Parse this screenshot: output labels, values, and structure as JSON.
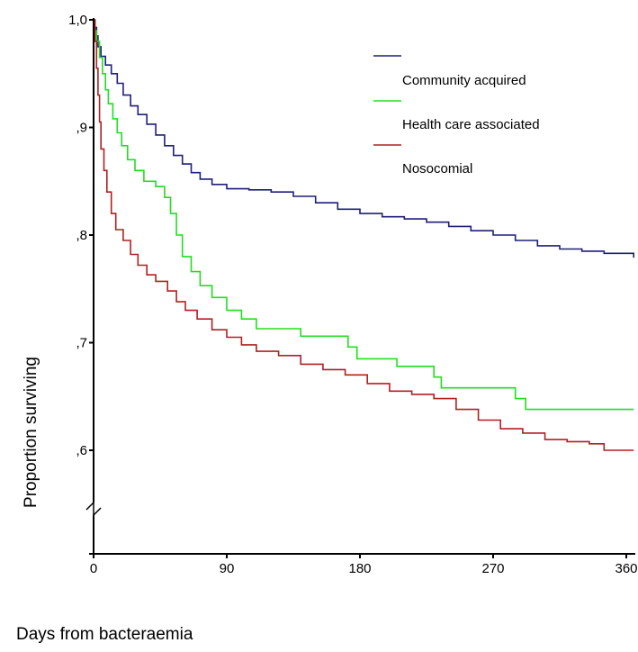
{
  "chart_data": {
    "type": "line",
    "title": "",
    "xlabel": "Days from bacteraemia",
    "ylabel": "Proportion surviving",
    "xlim": [
      0,
      365
    ],
    "ylim": [
      0.5,
      1.0
    ],
    "x_ticks": [
      0,
      90,
      180,
      270,
      360
    ],
    "x_tick_labels": [
      "0",
      "90",
      "180",
      "270",
      "360"
    ],
    "y_ticks": [
      1.0,
      0.9,
      0.8,
      0.7,
      0.6
    ],
    "y_tick_labels": [
      "1,0",
      ",9",
      ",8",
      ",7",
      ",6"
    ],
    "y_axis_break": true,
    "grid": false,
    "legend_position": "top-right",
    "series": [
      {
        "name": "Community acquired",
        "color": "#1f1f7a",
        "step": true,
        "points": [
          [
            0,
            1.0
          ],
          [
            1,
            0.993
          ],
          [
            2,
            0.985
          ],
          [
            3,
            0.975
          ],
          [
            5,
            0.966
          ],
          [
            8,
            0.958
          ],
          [
            12,
            0.95
          ],
          [
            16,
            0.941
          ],
          [
            20,
            0.93
          ],
          [
            25,
            0.92
          ],
          [
            30,
            0.912
          ],
          [
            36,
            0.903
          ],
          [
            42,
            0.893
          ],
          [
            48,
            0.883
          ],
          [
            54,
            0.874
          ],
          [
            60,
            0.866
          ],
          [
            66,
            0.858
          ],
          [
            72,
            0.852
          ],
          [
            80,
            0.847
          ],
          [
            90,
            0.843
          ],
          [
            105,
            0.842
          ],
          [
            120,
            0.84
          ],
          [
            135,
            0.836
          ],
          [
            150,
            0.83
          ],
          [
            165,
            0.824
          ],
          [
            180,
            0.82
          ],
          [
            195,
            0.817
          ],
          [
            210,
            0.815
          ],
          [
            225,
            0.812
          ],
          [
            240,
            0.808
          ],
          [
            255,
            0.804
          ],
          [
            270,
            0.8
          ],
          [
            285,
            0.795
          ],
          [
            300,
            0.79
          ],
          [
            315,
            0.787
          ],
          [
            330,
            0.785
          ],
          [
            345,
            0.783
          ],
          [
            360,
            0.783
          ],
          [
            365,
            0.779
          ]
        ]
      },
      {
        "name": "Health care associated",
        "color": "#22dd22",
        "step": true,
        "points": [
          [
            0,
            1.0
          ],
          [
            1,
            0.99
          ],
          [
            2,
            0.98
          ],
          [
            4,
            0.965
          ],
          [
            6,
            0.95
          ],
          [
            8,
            0.935
          ],
          [
            10,
            0.922
          ],
          [
            13,
            0.908
          ],
          [
            16,
            0.895
          ],
          [
            19,
            0.883
          ],
          [
            23,
            0.87
          ],
          [
            28,
            0.86
          ],
          [
            34,
            0.85
          ],
          [
            42,
            0.845
          ],
          [
            48,
            0.835
          ],
          [
            52,
            0.82
          ],
          [
            56,
            0.8
          ],
          [
            60,
            0.78
          ],
          [
            66,
            0.766
          ],
          [
            72,
            0.753
          ],
          [
            80,
            0.742
          ],
          [
            90,
            0.73
          ],
          [
            100,
            0.722
          ],
          [
            110,
            0.713
          ],
          [
            130,
            0.713
          ],
          [
            140,
            0.706
          ],
          [
            160,
            0.706
          ],
          [
            172,
            0.696
          ],
          [
            178,
            0.685
          ],
          [
            195,
            0.685
          ],
          [
            205,
            0.678
          ],
          [
            225,
            0.678
          ],
          [
            230,
            0.668
          ],
          [
            235,
            0.658
          ],
          [
            275,
            0.658
          ],
          [
            285,
            0.648
          ],
          [
            292,
            0.638
          ],
          [
            320,
            0.638
          ],
          [
            365,
            0.638
          ]
        ]
      },
      {
        "name": "Nosocomial",
        "color": "#b02020",
        "step": true,
        "points": [
          [
            0,
            1.0
          ],
          [
            1,
            0.98
          ],
          [
            2,
            0.955
          ],
          [
            3,
            0.93
          ],
          [
            4,
            0.905
          ],
          [
            5,
            0.88
          ],
          [
            7,
            0.86
          ],
          [
            9,
            0.84
          ],
          [
            12,
            0.82
          ],
          [
            15,
            0.805
          ],
          [
            20,
            0.795
          ],
          [
            25,
            0.782
          ],
          [
            30,
            0.772
          ],
          [
            36,
            0.763
          ],
          [
            42,
            0.757
          ],
          [
            50,
            0.748
          ],
          [
            56,
            0.738
          ],
          [
            62,
            0.73
          ],
          [
            70,
            0.722
          ],
          [
            80,
            0.712
          ],
          [
            90,
            0.705
          ],
          [
            100,
            0.698
          ],
          [
            110,
            0.692
          ],
          [
            125,
            0.688
          ],
          [
            140,
            0.68
          ],
          [
            155,
            0.675
          ],
          [
            170,
            0.67
          ],
          [
            185,
            0.662
          ],
          [
            200,
            0.655
          ],
          [
            215,
            0.652
          ],
          [
            230,
            0.648
          ],
          [
            245,
            0.638
          ],
          [
            260,
            0.628
          ],
          [
            275,
            0.62
          ],
          [
            290,
            0.616
          ],
          [
            305,
            0.61
          ],
          [
            320,
            0.608
          ],
          [
            335,
            0.606
          ],
          [
            345,
            0.6
          ],
          [
            365,
            0.6
          ]
        ]
      }
    ]
  }
}
